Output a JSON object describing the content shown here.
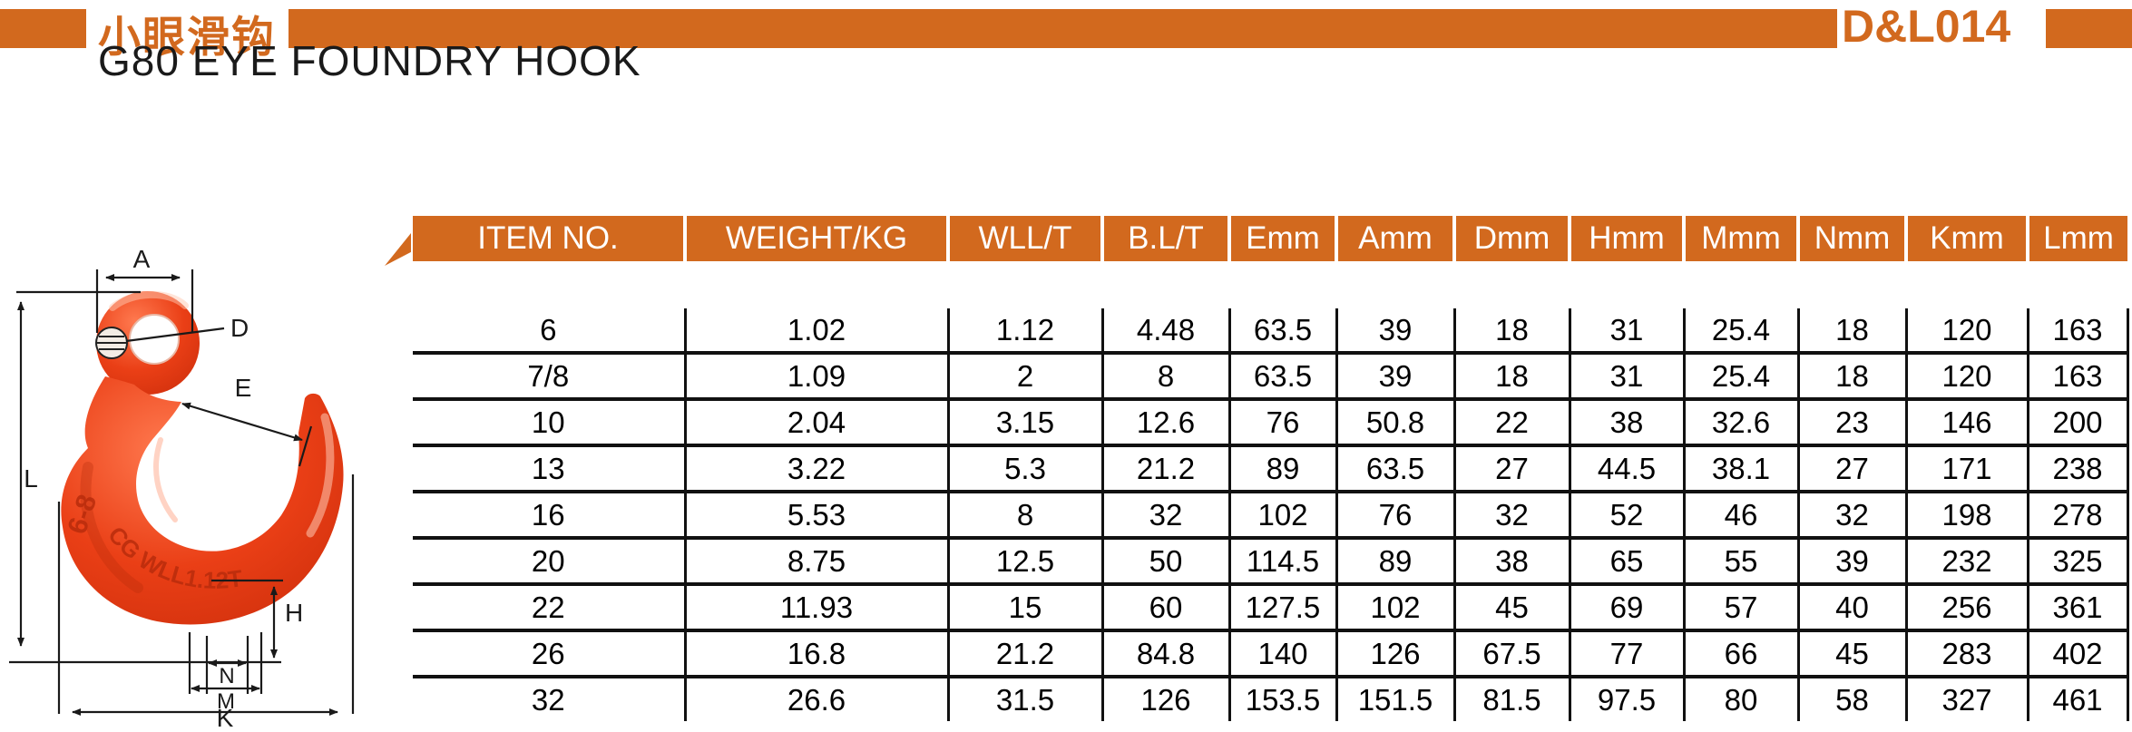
{
  "colors": {
    "accent": "#d2691e",
    "hook_red": "#e63c14",
    "table_line": "#111111",
    "header_text": "#ffffff"
  },
  "header": {
    "product_name_cn": "小眼滑钩",
    "product_name_en": "G80 EYE FOUNDRY HOOK",
    "code": "D&L014"
  },
  "drawing": {
    "labels": {
      "a": "A",
      "d": "D",
      "e": "E",
      "l": "L",
      "h": "H",
      "n": "N",
      "m": "M",
      "k": "K"
    },
    "markings": {
      "size": "6-8",
      "wll": "CG WLL1.12T"
    }
  },
  "table": {
    "columns": [
      "ITEM NO.",
      "WEIGHT/KG",
      "WLL/T",
      "B.L/T",
      "Emm",
      "Amm",
      "Dmm",
      "Hmm",
      "Mmm",
      "Nmm",
      "Kmm",
      "Lmm"
    ],
    "rows": [
      [
        "6",
        "1.02",
        "1.12",
        "4.48",
        "63.5",
        "39",
        "18",
        "31",
        "25.4",
        "18",
        "120",
        "163"
      ],
      [
        "7/8",
        "1.09",
        "2",
        "8",
        "63.5",
        "39",
        "18",
        "31",
        "25.4",
        "18",
        "120",
        "163"
      ],
      [
        "10",
        "2.04",
        "3.15",
        "12.6",
        "76",
        "50.8",
        "22",
        "38",
        "32.6",
        "23",
        "146",
        "200"
      ],
      [
        "13",
        "3.22",
        "5.3",
        "21.2",
        "89",
        "63.5",
        "27",
        "44.5",
        "38.1",
        "27",
        "171",
        "238"
      ],
      [
        "16",
        "5.53",
        "8",
        "32",
        "102",
        "76",
        "32",
        "52",
        "46",
        "32",
        "198",
        "278"
      ],
      [
        "20",
        "8.75",
        "12.5",
        "50",
        "114.5",
        "89",
        "38",
        "65",
        "55",
        "39",
        "232",
        "325"
      ],
      [
        "22",
        "11.93",
        "15",
        "60",
        "127.5",
        "102",
        "45",
        "69",
        "57",
        "40",
        "256",
        "361"
      ],
      [
        "26",
        "16.8",
        "21.2",
        "84.8",
        "140",
        "126",
        "67.5",
        "77",
        "66",
        "45",
        "283",
        "402"
      ],
      [
        "32",
        "26.6",
        "31.5",
        "126",
        "153.5",
        "151.5",
        "81.5",
        "97.5",
        "80",
        "58",
        "327",
        "461"
      ]
    ]
  }
}
